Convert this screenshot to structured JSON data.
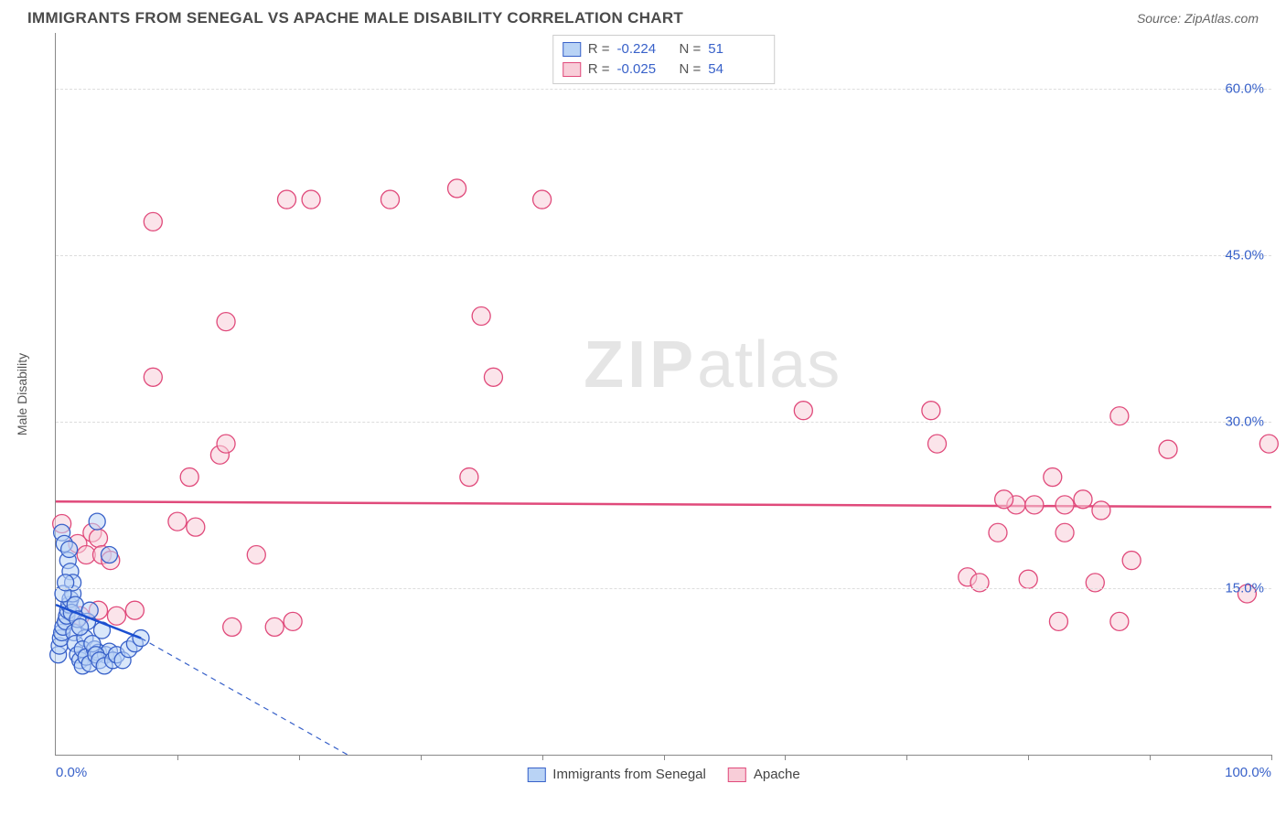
{
  "header": {
    "title": "IMMIGRANTS FROM SENEGAL VS APACHE MALE DISABILITY CORRELATION CHART",
    "source_label": "Source:",
    "source_value": "ZipAtlas.com"
  },
  "watermark": {
    "part1": "ZIP",
    "part2": "atlas"
  },
  "axes": {
    "ylabel": "Male Disability",
    "xlim": [
      0,
      100
    ],
    "ylim": [
      0,
      65
    ],
    "ytick_values": [
      15,
      30,
      45,
      60
    ],
    "ytick_labels": [
      "15.0%",
      "30.0%",
      "45.0%",
      "60.0%"
    ],
    "xtick_values": [
      10,
      20,
      30,
      40,
      50,
      60,
      70,
      80,
      90,
      100
    ],
    "xmin_label": "0.0%",
    "xmax_label": "100.0%"
  },
  "legend_top": {
    "rows": [
      {
        "swatch_fill": "#b9d3f5",
        "swatch_stroke": "#3861c9",
        "r_label": "R =",
        "r_value": "-0.224",
        "n_label": "N =",
        "n_value": "51"
      },
      {
        "swatch_fill": "#f8cdd8",
        "swatch_stroke": "#e04a7b",
        "r_label": "R =",
        "r_value": "-0.025",
        "n_label": "N =",
        "n_value": "54"
      }
    ]
  },
  "legend_bottom": {
    "items": [
      {
        "swatch_fill": "#b9d3f5",
        "swatch_stroke": "#3861c9",
        "label": "Immigrants from Senegal"
      },
      {
        "swatch_fill": "#f8cdd8",
        "swatch_stroke": "#e04a7b",
        "label": "Apache"
      }
    ]
  },
  "series": {
    "blue": {
      "fill": "#b9d3f5",
      "stroke": "#3861c9",
      "marker_r": 9,
      "trend": {
        "color": "#1b4fd1",
        "width": 2.5,
        "x1": 0,
        "y1": 13.5,
        "x2": 7,
        "y2": 10.5
      },
      "trend_ext": {
        "color": "#3861c9",
        "dash": "6,5",
        "width": 1.2,
        "x1": 7,
        "y1": 10.5,
        "x2": 24,
        "y2": 0
      },
      "points": [
        [
          0.2,
          9
        ],
        [
          0.3,
          9.8
        ],
        [
          0.4,
          10.5
        ],
        [
          0.5,
          11
        ],
        [
          0.6,
          11.5
        ],
        [
          0.8,
          12
        ],
        [
          0.9,
          12.5
        ],
        [
          1.0,
          13
        ],
        [
          1.1,
          13.5
        ],
        [
          1.2,
          14
        ],
        [
          1.4,
          14.5
        ],
        [
          1.5,
          11
        ],
        [
          1.6,
          10
        ],
        [
          1.8,
          9
        ],
        [
          2.0,
          8.5
        ],
        [
          2.2,
          8
        ],
        [
          2.4,
          10.5
        ],
        [
          2.6,
          12
        ],
        [
          0.5,
          20
        ],
        [
          0.7,
          19
        ],
        [
          1.0,
          17.5
        ],
        [
          1.2,
          16.5
        ],
        [
          1.4,
          15.5
        ],
        [
          0.6,
          14.5
        ],
        [
          0.8,
          15.5
        ],
        [
          1.1,
          18.5
        ],
        [
          1.3,
          12.8
        ],
        [
          1.6,
          13.5
        ],
        [
          1.8,
          12.2
        ],
        [
          2.0,
          11.5
        ],
        [
          2.2,
          9.5
        ],
        [
          2.5,
          8.8
        ],
        [
          2.8,
          8.2
        ],
        [
          3.2,
          9.5
        ],
        [
          3.5,
          9.2
        ],
        [
          3.8,
          11.2
        ],
        [
          4.1,
          9.0
        ],
        [
          4.4,
          9.3
        ],
        [
          3.0,
          10.0
        ],
        [
          3.3,
          9.0
        ],
        [
          3.6,
          8.5
        ],
        [
          4.0,
          8.0
        ],
        [
          4.7,
          8.5
        ],
        [
          5.0,
          9.0
        ],
        [
          5.5,
          8.5
        ],
        [
          2.8,
          13.0
        ],
        [
          3.4,
          21.0
        ],
        [
          4.4,
          18.0
        ],
        [
          6.0,
          9.5
        ],
        [
          6.5,
          10.0
        ],
        [
          7.0,
          10.5
        ]
      ]
    },
    "pink": {
      "fill": "#f8cdd8",
      "stroke": "#e04a7b",
      "marker_r": 10,
      "trend": {
        "color": "#e04a7b",
        "width": 2.5,
        "x1": 0,
        "y1": 22.8,
        "x2": 100,
        "y2": 22.3
      },
      "points": [
        [
          0.5,
          20.8
        ],
        [
          1.8,
          19.0
        ],
        [
          2.5,
          18.0
        ],
        [
          3.0,
          20.0
        ],
        [
          3.5,
          19.5
        ],
        [
          3.8,
          18.0
        ],
        [
          4.5,
          17.5
        ],
        [
          2.0,
          12.5
        ],
        [
          3.5,
          13.0
        ],
        [
          5.0,
          12.5
        ],
        [
          6.5,
          13.0
        ],
        [
          10.0,
          21.0
        ],
        [
          11.0,
          25.0
        ],
        [
          11.5,
          20.5
        ],
        [
          13.5,
          27.0
        ],
        [
          14.0,
          28.0
        ],
        [
          14.5,
          11.5
        ],
        [
          16.5,
          18.0
        ],
        [
          18.0,
          11.5
        ],
        [
          19.5,
          12.0
        ],
        [
          8.0,
          48.0
        ],
        [
          14.0,
          39.0
        ],
        [
          8.0,
          34.0
        ],
        [
          19.0,
          50.0
        ],
        [
          21.0,
          50.0
        ],
        [
          27.5,
          50.0
        ],
        [
          33.0,
          51.0
        ],
        [
          35.0,
          39.5
        ],
        [
          34.0,
          25.0
        ],
        [
          36.0,
          34.0
        ],
        [
          40.0,
          50.0
        ],
        [
          61.5,
          31.0
        ],
        [
          72.5,
          28.0
        ],
        [
          75.0,
          16.0
        ],
        [
          76.0,
          15.5
        ],
        [
          79.0,
          22.5
        ],
        [
          80.5,
          22.5
        ],
        [
          83.0,
          22.5
        ],
        [
          82.0,
          25.0
        ],
        [
          83.0,
          20.0
        ],
        [
          82.5,
          12.0
        ],
        [
          85.5,
          15.5
        ],
        [
          87.5,
          30.5
        ],
        [
          88.5,
          17.5
        ],
        [
          87.5,
          12.0
        ],
        [
          91.5,
          27.5
        ],
        [
          98.0,
          14.5
        ],
        [
          99.8,
          28.0
        ],
        [
          72.0,
          31.0
        ],
        [
          78.0,
          23.0
        ],
        [
          84.5,
          23.0
        ],
        [
          86.0,
          22.0
        ],
        [
          77.5,
          20.0
        ],
        [
          80.0,
          15.8
        ]
      ]
    }
  }
}
